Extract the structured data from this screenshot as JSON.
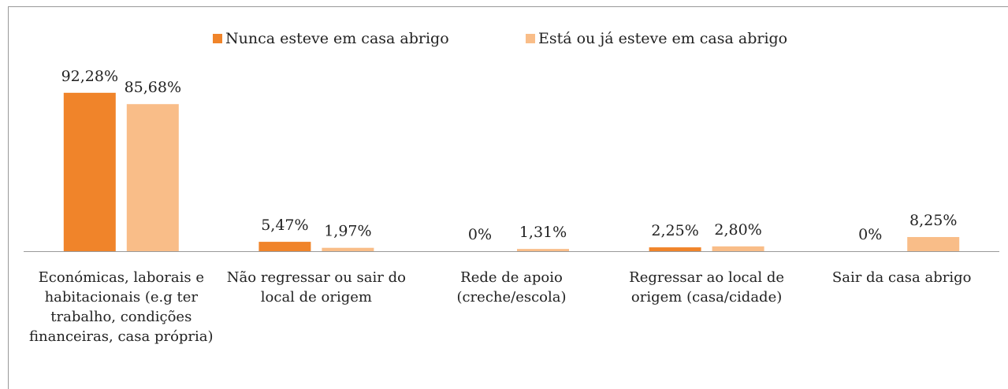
{
  "chart_data": {
    "type": "bar",
    "categories": [
      "Económicas, laborais e habitacionais (e.g ter trabalho, condições financeiras, casa própria)",
      "Não regressar ou sair do local de origem",
      "Rede de apoio (creche/escola)",
      "Regressar ao local de origem (casa/cidade)",
      "Sair da casa abrigo"
    ],
    "series": [
      {
        "name": "Nunca esteve em casa abrigo",
        "color": "#f0842a",
        "values": [
          92.28,
          5.47,
          0,
          2.25,
          0
        ],
        "value_labels": [
          "92,28%",
          "5,47%",
          "0%",
          "2,25%",
          "0%"
        ]
      },
      {
        "name": "Está ou já esteve em casa abrigo",
        "color": "#f9bd88",
        "values": [
          85.68,
          1.97,
          1.31,
          2.8,
          8.25
        ],
        "value_labels": [
          "85,68%",
          "1,97%",
          "1,31%",
          "2,80%",
          "8,25%"
        ]
      }
    ],
    "ylim": [
      0,
      100
    ],
    "legend": "top"
  }
}
